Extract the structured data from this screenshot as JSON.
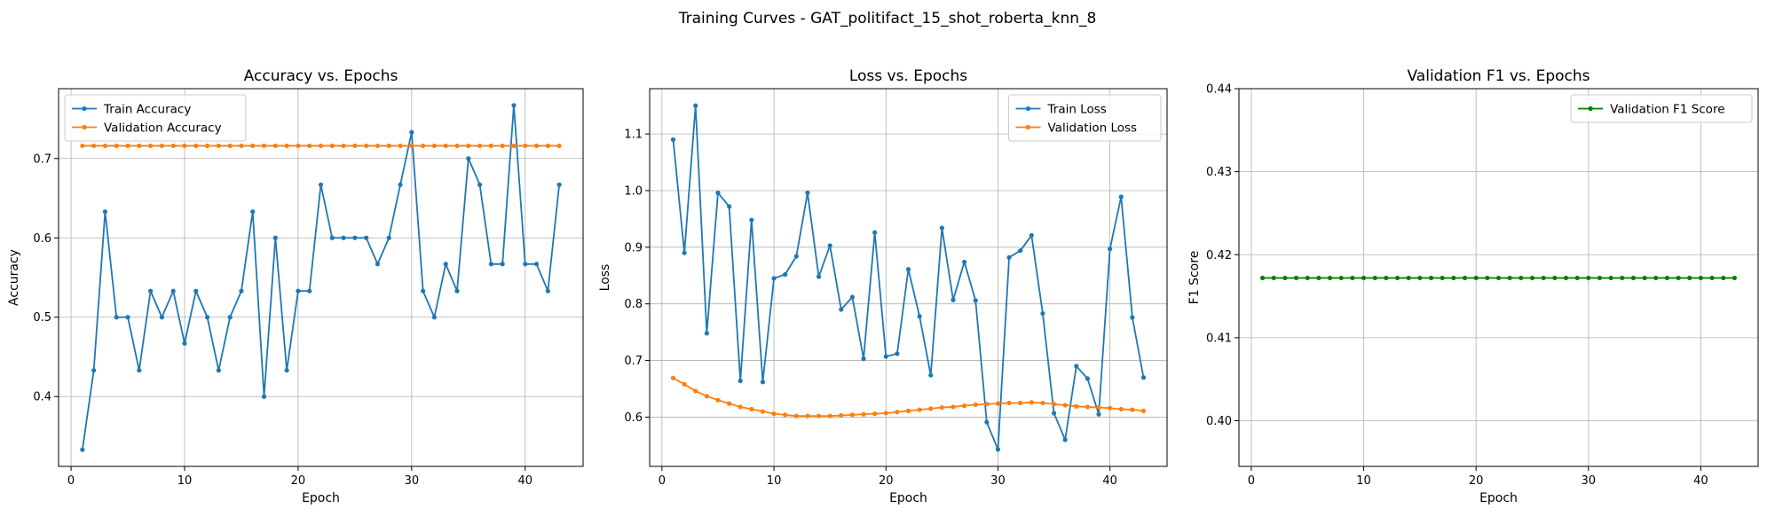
{
  "suptitle": "Training Curves - GAT_politifact_15_shot_roberta_knn_8",
  "chart_data": [
    {
      "type": "line",
      "title": "Accuracy vs. Epochs",
      "xlabel": "Epoch",
      "ylabel": "Accuracy",
      "xlim": [
        -1.1,
        45.1
      ],
      "ylim": [
        0.312,
        0.788
      ],
      "xticks": [
        0,
        10,
        20,
        30,
        40
      ],
      "yticks": [
        0.4,
        0.5,
        0.6,
        0.7
      ],
      "tick_decimals": 1,
      "grid": true,
      "legend_position": "upper-left",
      "x": [
        1,
        2,
        3,
        4,
        5,
        6,
        7,
        8,
        9,
        10,
        11,
        12,
        13,
        14,
        15,
        16,
        17,
        18,
        19,
        20,
        21,
        22,
        23,
        24,
        25,
        26,
        27,
        28,
        29,
        30,
        31,
        32,
        33,
        34,
        35,
        36,
        37,
        38,
        39,
        40,
        41,
        42,
        43
      ],
      "series": [
        {
          "name": "Train Accuracy",
          "color": "#1f77b4",
          "values": [
            0.333,
            0.433,
            0.633,
            0.5,
            0.5,
            0.433,
            0.533,
            0.5,
            0.533,
            0.467,
            0.533,
            0.5,
            0.433,
            0.5,
            0.533,
            0.633,
            0.4,
            0.6,
            0.433,
            0.533,
            0.533,
            0.667,
            0.6,
            0.6,
            0.6,
            0.6,
            0.567,
            0.6,
            0.667,
            0.733,
            0.533,
            0.5,
            0.567,
            0.533,
            0.7,
            0.667,
            0.567,
            0.567,
            0.767,
            0.567,
            0.567,
            0.533,
            0.667
          ]
        },
        {
          "name": "Validation Accuracy",
          "color": "#ff7f0e",
          "values": [
            0.716,
            0.716,
            0.716,
            0.716,
            0.716,
            0.716,
            0.716,
            0.716,
            0.716,
            0.716,
            0.716,
            0.716,
            0.716,
            0.716,
            0.716,
            0.716,
            0.716,
            0.716,
            0.716,
            0.716,
            0.716,
            0.716,
            0.716,
            0.716,
            0.716,
            0.716,
            0.716,
            0.716,
            0.716,
            0.716,
            0.716,
            0.716,
            0.716,
            0.716,
            0.716,
            0.716,
            0.716,
            0.716,
            0.716,
            0.716,
            0.716,
            0.716,
            0.716
          ]
        }
      ]
    },
    {
      "type": "line",
      "title": "Loss vs. Epochs",
      "xlabel": "Epoch",
      "ylabel": "Loss",
      "xlim": [
        -1.1,
        45.1
      ],
      "ylim": [
        0.513,
        1.18
      ],
      "xticks": [
        0,
        10,
        20,
        30,
        40
      ],
      "yticks": [
        0.6,
        0.7,
        0.8,
        0.9,
        1.0,
        1.1
      ],
      "tick_decimals": 1,
      "grid": true,
      "legend_position": "upper-right",
      "x": [
        1,
        2,
        3,
        4,
        5,
        6,
        7,
        8,
        9,
        10,
        11,
        12,
        13,
        14,
        15,
        16,
        17,
        18,
        19,
        20,
        21,
        22,
        23,
        24,
        25,
        26,
        27,
        28,
        29,
        30,
        31,
        32,
        33,
        34,
        35,
        36,
        37,
        38,
        39,
        40,
        41,
        42,
        43
      ],
      "series": [
        {
          "name": "Train Loss",
          "color": "#1f77b4",
          "values": [
            1.09,
            0.89,
            1.15,
            0.748,
            0.996,
            0.972,
            0.664,
            0.948,
            0.662,
            0.845,
            0.852,
            0.884,
            0.996,
            0.848,
            0.903,
            0.79,
            0.812,
            0.703,
            0.926,
            0.707,
            0.712,
            0.861,
            0.778,
            0.674,
            0.934,
            0.807,
            0.874,
            0.806,
            0.591,
            0.543,
            0.882,
            0.894,
            0.921,
            0.783,
            0.607,
            0.56,
            0.69,
            0.668,
            0.605,
            0.897,
            0.989,
            0.776,
            0.67
          ]
        },
        {
          "name": "Validation Loss",
          "color": "#ff7f0e",
          "values": [
            0.669,
            0.658,
            0.646,
            0.637,
            0.63,
            0.624,
            0.618,
            0.614,
            0.61,
            0.606,
            0.604,
            0.602,
            0.602,
            0.602,
            0.602,
            0.603,
            0.604,
            0.605,
            0.606,
            0.607,
            0.609,
            0.611,
            0.613,
            0.615,
            0.617,
            0.618,
            0.62,
            0.622,
            0.623,
            0.624,
            0.625,
            0.625,
            0.626,
            0.625,
            0.623,
            0.621,
            0.619,
            0.618,
            0.617,
            0.616,
            0.614,
            0.613,
            0.611
          ]
        }
      ]
    },
    {
      "type": "line",
      "title": "Validation F1 vs. Epochs",
      "xlabel": "Epoch",
      "ylabel": "F1 Score",
      "xlim": [
        -1.1,
        45.1
      ],
      "ylim": [
        0.3945,
        0.44
      ],
      "xticks": [
        0,
        10,
        20,
        30,
        40
      ],
      "yticks": [
        0.4,
        0.41,
        0.42,
        0.43,
        0.44
      ],
      "tick_decimals": 2,
      "grid": true,
      "legend_position": "upper-right",
      "x": [
        1,
        2,
        3,
        4,
        5,
        6,
        7,
        8,
        9,
        10,
        11,
        12,
        13,
        14,
        15,
        16,
        17,
        18,
        19,
        20,
        21,
        22,
        23,
        24,
        25,
        26,
        27,
        28,
        29,
        30,
        31,
        32,
        33,
        34,
        35,
        36,
        37,
        38,
        39,
        40,
        41,
        42,
        43
      ],
      "series": [
        {
          "name": "Validation F1 Score",
          "color": "#008000",
          "values": [
            0.4172,
            0.4172,
            0.4172,
            0.4172,
            0.4172,
            0.4172,
            0.4172,
            0.4172,
            0.4172,
            0.4172,
            0.4172,
            0.4172,
            0.4172,
            0.4172,
            0.4172,
            0.4172,
            0.4172,
            0.4172,
            0.4172,
            0.4172,
            0.4172,
            0.4172,
            0.4172,
            0.4172,
            0.4172,
            0.4172,
            0.4172,
            0.4172,
            0.4172,
            0.4172,
            0.4172,
            0.4172,
            0.4172,
            0.4172,
            0.4172,
            0.4172,
            0.4172,
            0.4172,
            0.4172,
            0.4172,
            0.4172,
            0.4172,
            0.4172
          ]
        }
      ]
    }
  ]
}
